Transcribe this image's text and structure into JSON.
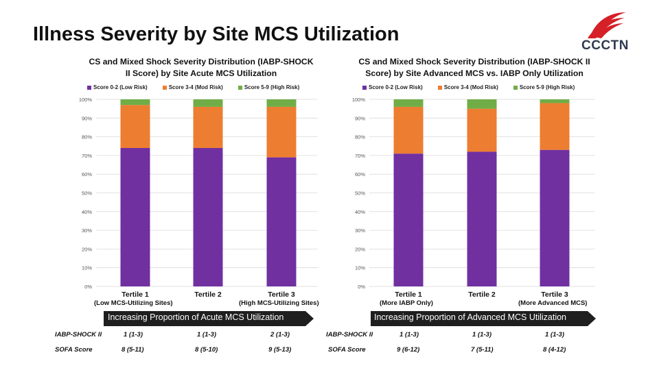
{
  "slide": {
    "title": "Illness Severity by Site MCS Utilization",
    "logo_text": "CCCTN"
  },
  "colors": {
    "low": "#7030a0",
    "mod": "#ed7d31",
    "high": "#70ad47",
    "arrow": "#1f1f1f",
    "grid": "#d9d9d9"
  },
  "chart_data": [
    {
      "type": "bar",
      "stacked": true,
      "title_lines": [
        "CS and Mixed Shock Severity Distribution (IABP-SHOCK",
        "II Score) by Site Acute MCS Utilization"
      ],
      "categories": [
        "Tertile 1",
        "Tertile 2",
        "Tertile 3"
      ],
      "category_sublabels": [
        "(Low MCS-Utilizing Sites)",
        "",
        "(High MCS-Utilizing Sites)"
      ],
      "series": [
        {
          "name": "Score 0-2 (Low Risk)",
          "values": [
            74,
            74,
            69
          ]
        },
        {
          "name": "Score 3-4 (Mod Risk)",
          "values": [
            23,
            22,
            27
          ]
        },
        {
          "name": "Score 5-9 (High Risk)",
          "values": [
            3,
            4,
            4
          ]
        }
      ],
      "yticks": [
        "0%",
        "10%",
        "20%",
        "30%",
        "40%",
        "50%",
        "60%",
        "70%",
        "80%",
        "90%",
        "100%"
      ],
      "ylim": [
        0,
        100
      ],
      "legend_position": "top",
      "arrow_label": "Increasing Proportion of Acute MCS Utilization",
      "table": {
        "rows": [
          {
            "label": "IABP-SHOCK II",
            "values": [
              "1 (1-3)",
              "1 (1-3)",
              "2 (1-3)"
            ]
          },
          {
            "label": "SOFA Score",
            "values": [
              "8 (5-11)",
              "8 (5-10)",
              "9 (5-13)"
            ]
          }
        ]
      }
    },
    {
      "type": "bar",
      "stacked": true,
      "title_lines": [
        "CS and Mixed Shock  Severity Distribution (IABP-SHOCK II",
        "Score) by Site Advanced MCS vs. IABP Only Utilization"
      ],
      "categories": [
        "Tertile 1",
        "Tertile 2",
        "Tertile 3"
      ],
      "category_sublabels": [
        "(More IABP Only)",
        "",
        "(More Advanced MCS)"
      ],
      "series": [
        {
          "name": "Score 0-2 (Low Risk)",
          "values": [
            71,
            72,
            73
          ]
        },
        {
          "name": "Score 3-4 (Mod Risk)",
          "values": [
            25,
            23,
            25
          ]
        },
        {
          "name": "Score 5-9 (High Risk)",
          "values": [
            4,
            5,
            2
          ]
        }
      ],
      "yticks": [
        "0%",
        "10%",
        "20%",
        "30%",
        "40%",
        "50%",
        "60%",
        "70%",
        "80%",
        "90%",
        "100%"
      ],
      "ylim": [
        0,
        100
      ],
      "legend_position": "top",
      "arrow_label": "Increasing Proportion of Advanced MCS Utilization",
      "table": {
        "rows": [
          {
            "label": "IABP-SHOCK II",
            "values": [
              "1 (1-3)",
              "1 (1-3)",
              "1 (1-3)"
            ]
          },
          {
            "label": "SOFA Score",
            "values": [
              "9 (6-12)",
              "7 (5-11)",
              "8 (4-12)"
            ]
          }
        ]
      }
    }
  ]
}
